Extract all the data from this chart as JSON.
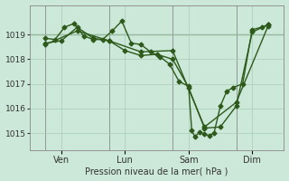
{
  "background_color": "#cce8d8",
  "plot_bg_color": "#cce8d8",
  "line_color": "#2d5a1b",
  "marker_color": "#2d5a1b",
  "grid_color": "#a8ccb8",
  "xlabel": "Pression niveau de la mer( hPa )",
  "ylim": [
    1014.3,
    1020.2
  ],
  "yticks": [
    1015,
    1016,
    1017,
    1018,
    1019
  ],
  "day_labels": [
    "Ven",
    "Lun",
    "Sam",
    "Dim"
  ],
  "day_positions": [
    1.0,
    3.0,
    5.0,
    7.0
  ],
  "vline_positions": [
    0.5,
    2.5,
    4.5,
    6.5
  ],
  "hline_y": 1019.0,
  "xlim": [
    0.0,
    8.0
  ],
  "series1_x": [
    0.5,
    0.8,
    1.1,
    1.4,
    1.7,
    2.0,
    2.3,
    2.6,
    2.9,
    3.2,
    3.5,
    3.8,
    4.1,
    4.4,
    4.7,
    5.0,
    5.1,
    5.2,
    5.35,
    5.5,
    5.65,
    5.8,
    6.0,
    6.2,
    6.4,
    6.7,
    7.0,
    7.3,
    7.5
  ],
  "series1_y": [
    1018.85,
    1018.8,
    1019.3,
    1019.45,
    1018.95,
    1018.8,
    1018.8,
    1019.15,
    1019.55,
    1018.65,
    1018.6,
    1018.3,
    1018.1,
    1017.8,
    1017.1,
    1016.9,
    1015.1,
    1014.85,
    1015.05,
    1014.95,
    1014.9,
    1015.0,
    1016.1,
    1016.7,
    1016.85,
    1017.0,
    1019.2,
    1019.3,
    1019.4
  ],
  "series2_x": [
    0.5,
    1.0,
    1.5,
    2.0,
    2.5,
    3.0,
    3.5,
    4.0,
    4.5,
    5.0,
    5.5,
    6.0,
    6.5,
    7.0,
    7.5
  ],
  "series2_y": [
    1018.65,
    1018.75,
    1019.3,
    1018.85,
    1018.75,
    1018.35,
    1018.15,
    1018.2,
    1018.0,
    1016.85,
    1015.2,
    1015.25,
    1016.1,
    1019.1,
    1019.4
  ],
  "series3_x": [
    0.5,
    1.5,
    2.5,
    3.5,
    4.5,
    5.5,
    6.5,
    7.5
  ],
  "series3_y": [
    1018.6,
    1019.15,
    1018.75,
    1018.3,
    1018.35,
    1015.25,
    1016.25,
    1019.35
  ]
}
